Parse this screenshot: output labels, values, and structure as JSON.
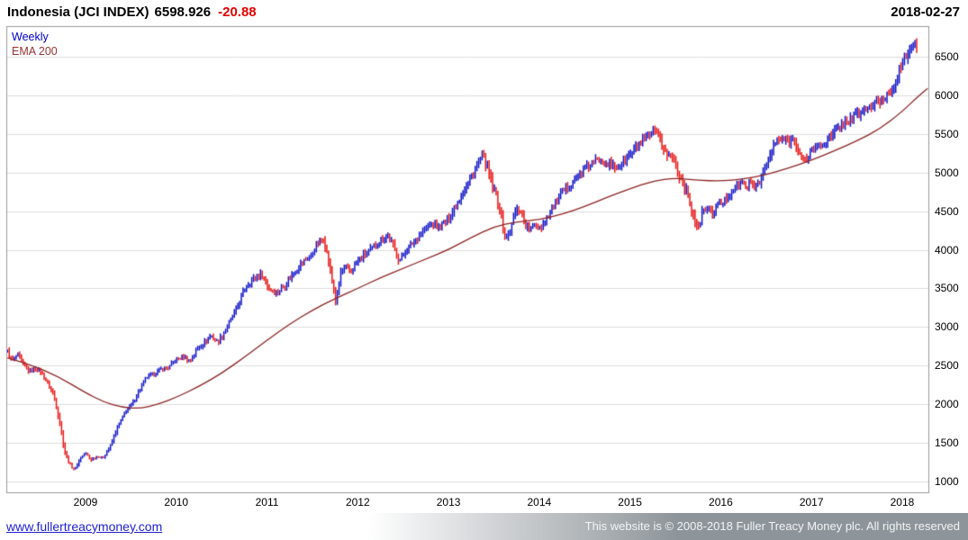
{
  "header": {
    "instrument": "Indonesia (JCI INDEX)",
    "last_price": "6598.926",
    "change": "-20.88",
    "date": "2018-02-27"
  },
  "legend": {
    "timeframe": "Weekly",
    "overlay": "EMA 200"
  },
  "footer": {
    "site_link": "www.fullertreacymoney.com",
    "copyright": "This website is © 2008-2018 Fuller Treacy Money plc. All rights reserved"
  },
  "colors": {
    "up": "#1114c8",
    "down": "#e81616",
    "ema": "#8b2323",
    "grid": "#dcdcdc",
    "border": "#999999"
  },
  "chart_data": {
    "type": "candlestick",
    "title": "Indonesia (JCI INDEX) Weekly with 200-period EMA",
    "timeframe": "weekly",
    "last_price": 6598.926,
    "change": -20.88,
    "as_of": "2018-02-27",
    "grid": "horizontal",
    "legend_position": "top-left",
    "ylim": [
      849,
      6896
    ],
    "yticks": [
      1000,
      1500,
      2000,
      2500,
      3000,
      3500,
      4000,
      4500,
      5000,
      5500,
      6000,
      6500
    ],
    "xticks": [
      2009,
      2010,
      2011,
      2012,
      2013,
      2014,
      2015,
      2016,
      2017,
      2018
    ],
    "xlim": [
      2008.127,
      2018.298
    ],
    "x_range": [
      2008.14,
      2018.17
    ],
    "bars_per_year": 52,
    "price_anchors": [
      [
        2008.14,
        2680
      ],
      [
        2008.19,
        2560
      ],
      [
        2008.25,
        2640
      ],
      [
        2008.31,
        2520
      ],
      [
        2008.38,
        2420
      ],
      [
        2008.46,
        2470
      ],
      [
        2008.52,
        2400
      ],
      [
        2008.58,
        2280
      ],
      [
        2008.65,
        2120
      ],
      [
        2008.71,
        1800
      ],
      [
        2008.77,
        1400
      ],
      [
        2008.82,
        1230
      ],
      [
        2008.88,
        1150
      ],
      [
        2008.94,
        1300
      ],
      [
        2009.0,
        1370
      ],
      [
        2009.06,
        1280
      ],
      [
        2009.13,
        1330
      ],
      [
        2009.19,
        1300
      ],
      [
        2009.27,
        1450
      ],
      [
        2009.35,
        1700
      ],
      [
        2009.44,
        1900
      ],
      [
        2009.52,
        2020
      ],
      [
        2009.6,
        2200
      ],
      [
        2009.67,
        2350
      ],
      [
        2009.75,
        2390
      ],
      [
        2009.83,
        2450
      ],
      [
        2009.92,
        2480
      ],
      [
        2010.0,
        2580
      ],
      [
        2010.08,
        2620
      ],
      [
        2010.15,
        2550
      ],
      [
        2010.23,
        2720
      ],
      [
        2010.31,
        2800
      ],
      [
        2010.38,
        2890
      ],
      [
        2010.46,
        2800
      ],
      [
        2010.54,
        2970
      ],
      [
        2010.62,
        3130
      ],
      [
        2010.69,
        3300
      ],
      [
        2010.77,
        3540
      ],
      [
        2010.85,
        3620
      ],
      [
        2010.94,
        3690
      ],
      [
        2011.02,
        3500
      ],
      [
        2011.1,
        3440
      ],
      [
        2011.19,
        3530
      ],
      [
        2011.29,
        3700
      ],
      [
        2011.38,
        3830
      ],
      [
        2011.48,
        3920
      ],
      [
        2011.56,
        4080
      ],
      [
        2011.62,
        4150
      ],
      [
        2011.67,
        3900
      ],
      [
        2011.72,
        3560
      ],
      [
        2011.76,
        3320
      ],
      [
        2011.81,
        3690
      ],
      [
        2011.86,
        3780
      ],
      [
        2011.92,
        3720
      ],
      [
        2012.0,
        3850
      ],
      [
        2012.08,
        3950
      ],
      [
        2012.17,
        4020
      ],
      [
        2012.25,
        4130
      ],
      [
        2012.33,
        4180
      ],
      [
        2012.4,
        4030
      ],
      [
        2012.46,
        3860
      ],
      [
        2012.53,
        3990
      ],
      [
        2012.62,
        4110
      ],
      [
        2012.71,
        4230
      ],
      [
        2012.81,
        4330
      ],
      [
        2012.9,
        4290
      ],
      [
        2013.0,
        4400
      ],
      [
        2013.08,
        4570
      ],
      [
        2013.17,
        4780
      ],
      [
        2013.25,
        4930
      ],
      [
        2013.33,
        5130
      ],
      [
        2013.38,
        5220
      ],
      [
        2013.43,
        5060
      ],
      [
        2013.48,
        4830
      ],
      [
        2013.53,
        4690
      ],
      [
        2013.58,
        4430
      ],
      [
        2013.63,
        4120
      ],
      [
        2013.69,
        4280
      ],
      [
        2013.74,
        4500
      ],
      [
        2013.79,
        4530
      ],
      [
        2013.84,
        4340
      ],
      [
        2013.9,
        4250
      ],
      [
        2013.95,
        4320
      ],
      [
        2014.02,
        4300
      ],
      [
        2014.1,
        4460
      ],
      [
        2014.19,
        4620
      ],
      [
        2014.27,
        4760
      ],
      [
        2014.35,
        4870
      ],
      [
        2014.44,
        4960
      ],
      [
        2014.52,
        5060
      ],
      [
        2014.6,
        5130
      ],
      [
        2014.69,
        5190
      ],
      [
        2014.77,
        5110
      ],
      [
        2014.85,
        5060
      ],
      [
        2014.94,
        5160
      ],
      [
        2015.02,
        5250
      ],
      [
        2015.1,
        5360
      ],
      [
        2015.19,
        5460
      ],
      [
        2015.27,
        5510
      ],
      [
        2015.33,
        5430
      ],
      [
        2015.4,
        5240
      ],
      [
        2015.48,
        5180
      ],
      [
        2015.56,
        4920
      ],
      [
        2015.63,
        4750
      ],
      [
        2015.69,
        4480
      ],
      [
        2015.75,
        4230
      ],
      [
        2015.79,
        4460
      ],
      [
        2015.85,
        4560
      ],
      [
        2015.9,
        4460
      ],
      [
        2015.96,
        4570
      ],
      [
        2016.04,
        4630
      ],
      [
        2016.12,
        4770
      ],
      [
        2016.21,
        4860
      ],
      [
        2016.29,
        4840
      ],
      [
        2016.37,
        4820
      ],
      [
        2016.44,
        4920
      ],
      [
        2016.52,
        5140
      ],
      [
        2016.6,
        5380
      ],
      [
        2016.67,
        5430
      ],
      [
        2016.75,
        5400
      ],
      [
        2016.81,
        5440
      ],
      [
        2016.87,
        5230
      ],
      [
        2016.92,
        5130
      ],
      [
        2016.98,
        5260
      ],
      [
        2017.06,
        5330
      ],
      [
        2017.15,
        5400
      ],
      [
        2017.23,
        5470
      ],
      [
        2017.31,
        5600
      ],
      [
        2017.4,
        5680
      ],
      [
        2017.48,
        5730
      ],
      [
        2017.56,
        5800
      ],
      [
        2017.65,
        5850
      ],
      [
        2017.73,
        5900
      ],
      [
        2017.81,
        5980
      ],
      [
        2017.88,
        6070
      ],
      [
        2017.94,
        6250
      ],
      [
        2018.0,
        6400
      ],
      [
        2018.06,
        6560
      ],
      [
        2018.1,
        6660
      ],
      [
        2018.13,
        6640
      ],
      [
        2018.15,
        6590
      ],
      [
        2018.17,
        6599
      ]
    ],
    "ema_anchors": [
      [
        2008.14,
        2600
      ],
      [
        2008.4,
        2510
      ],
      [
        2008.7,
        2360
      ],
      [
        2009.0,
        2150
      ],
      [
        2009.2,
        2030
      ],
      [
        2009.4,
        1960
      ],
      [
        2009.6,
        1945
      ],
      [
        2009.8,
        2000
      ],
      [
        2010.0,
        2090
      ],
      [
        2010.25,
        2230
      ],
      [
        2010.5,
        2400
      ],
      [
        2010.75,
        2610
      ],
      [
        2011.0,
        2830
      ],
      [
        2011.25,
        3040
      ],
      [
        2011.5,
        3220
      ],
      [
        2011.75,
        3370
      ],
      [
        2012.0,
        3500
      ],
      [
        2012.25,
        3640
      ],
      [
        2012.5,
        3760
      ],
      [
        2012.75,
        3880
      ],
      [
        2013.0,
        4000
      ],
      [
        2013.25,
        4160
      ],
      [
        2013.5,
        4300
      ],
      [
        2013.75,
        4360
      ],
      [
        2014.0,
        4390
      ],
      [
        2014.25,
        4460
      ],
      [
        2014.5,
        4560
      ],
      [
        2014.75,
        4680
      ],
      [
        2015.0,
        4790
      ],
      [
        2015.25,
        4890
      ],
      [
        2015.5,
        4930
      ],
      [
        2015.75,
        4900
      ],
      [
        2016.0,
        4890
      ],
      [
        2016.25,
        4915
      ],
      [
        2016.5,
        4970
      ],
      [
        2016.75,
        5060
      ],
      [
        2017.0,
        5160
      ],
      [
        2017.25,
        5280
      ],
      [
        2017.5,
        5410
      ],
      [
        2017.75,
        5560
      ],
      [
        2018.0,
        5790
      ],
      [
        2018.15,
        5960
      ],
      [
        2018.28,
        6090
      ]
    ]
  }
}
